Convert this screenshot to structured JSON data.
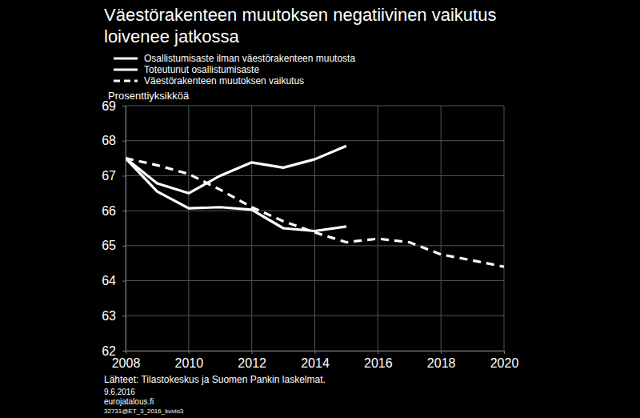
{
  "chart_data": {
    "type": "line",
    "title": "Väestörakenteen muutoksen negatiivinen vaikutus\nloivenee jatkossa",
    "ylabel": "Prosenttiyksikköä",
    "source": "Lähteet: Tilastokeskus ja Suomen Pankin laskelmat.",
    "footnotes": [
      "9.6.2016",
      "eurojatalous.fi",
      "32731@ET_3_2016_kuvio3"
    ],
    "x": [
      2008,
      2009,
      2010,
      2011,
      2012,
      2013,
      2014,
      2015,
      2016,
      2017,
      2018,
      2019,
      2020
    ],
    "series": [
      {
        "name": "Osallistumisaste ilman väestörakenteen muutosta",
        "color": "#ffffff",
        "line_style": "solid",
        "values": [
          67.5,
          66.78,
          66.5,
          67.0,
          67.38,
          67.23,
          67.47,
          67.85,
          null,
          null,
          null,
          null,
          null
        ]
      },
      {
        "name": "Toteutunut osallistumisaste",
        "color": "#ffffff",
        "line_style": "solid",
        "values": [
          67.5,
          66.55,
          66.07,
          66.1,
          66.03,
          65.5,
          65.42,
          65.55,
          null,
          null,
          null,
          null,
          null
        ]
      },
      {
        "name": "Väestörakenteen muutoksen vaikutus",
        "color": "#ffffff",
        "line_style": "dashed",
        "values": [
          67.5,
          67.3,
          67.05,
          66.6,
          66.1,
          65.7,
          65.38,
          65.1,
          65.2,
          65.1,
          64.75,
          64.58,
          64.4
        ]
      }
    ],
    "xlim": [
      2008,
      2020
    ],
    "xticks": [
      2008,
      2010,
      2012,
      2014,
      2016,
      2018,
      2020
    ],
    "ylim": [
      62,
      69
    ],
    "yticks": [
      62,
      63,
      64,
      65,
      66,
      67,
      68,
      69
    ],
    "grid": true,
    "legend": "upper left"
  }
}
